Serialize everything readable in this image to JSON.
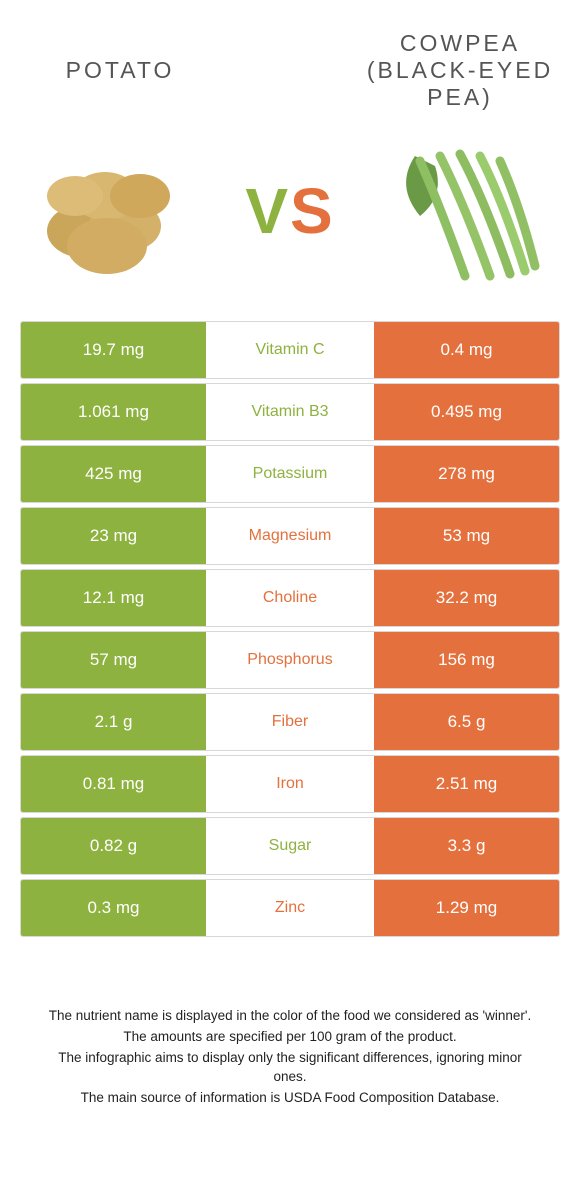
{
  "colors": {
    "left": "#8eb23f",
    "right": "#e4713d",
    "row_border": "#d8d8d8",
    "title_text": "#555555",
    "footnote_text": "#222222"
  },
  "left_food": {
    "title": "POTATO"
  },
  "right_food": {
    "title": "COWPEA (BLACK-EYED PEA)"
  },
  "rows": [
    {
      "label": "Vitamin C",
      "left": "19.7 mg",
      "right": "0.4 mg",
      "winner": "left"
    },
    {
      "label": "Vitamin B3",
      "left": "1.061 mg",
      "right": "0.495 mg",
      "winner": "left"
    },
    {
      "label": "Potassium",
      "left": "425 mg",
      "right": "278 mg",
      "winner": "left"
    },
    {
      "label": "Magnesium",
      "left": "23 mg",
      "right": "53 mg",
      "winner": "right"
    },
    {
      "label": "Choline",
      "left": "12.1 mg",
      "right": "32.2 mg",
      "winner": "right"
    },
    {
      "label": "Phosphorus",
      "left": "57 mg",
      "right": "156 mg",
      "winner": "right"
    },
    {
      "label": "Fiber",
      "left": "2.1 g",
      "right": "6.5 g",
      "winner": "right"
    },
    {
      "label": "Iron",
      "left": "0.81 mg",
      "right": "2.51 mg",
      "winner": "right"
    },
    {
      "label": "Sugar",
      "left": "0.82 g",
      "right": "3.3 g",
      "winner": "left"
    },
    {
      "label": "Zinc",
      "left": "0.3 mg",
      "right": "1.29 mg",
      "winner": "right"
    }
  ],
  "footnotes": [
    "The nutrient name is displayed in the color of the food we considered as 'winner'.",
    "The amounts are specified per 100 gram of the product.",
    "The infographic aims to display only the significant differences, ignoring minor ones.",
    "The main source of information is USDA Food Composition Database."
  ]
}
